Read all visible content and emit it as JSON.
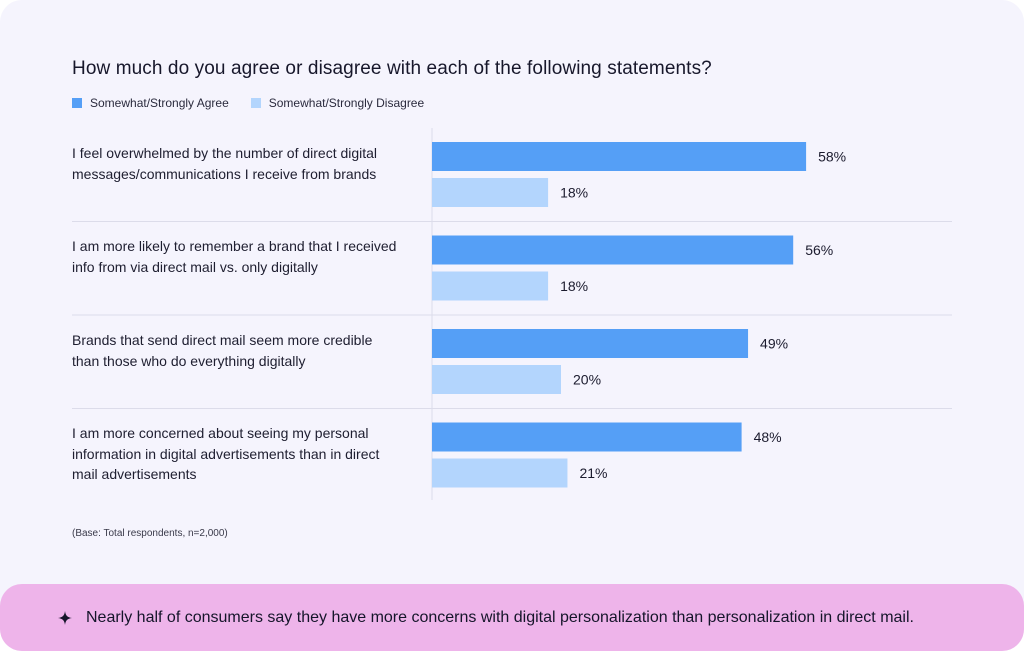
{
  "colors": {
    "agree": "#559ff6",
    "disagree": "#b3d5fd",
    "banner": "#eeb4ea"
  },
  "chart_data": {
    "type": "bar",
    "orientation": "horizontal",
    "title": "How much do you agree or disagree with each of the following statements?",
    "categories": [
      "I feel overwhelmed by the number of direct digital messages/communications I receive from brands",
      "I am more likely to remember a brand that I received info from via direct mail vs. only digitally",
      "Brands that send direct mail seem more credible than those who do everything digitally",
      "I am more concerned about seeing my personal information in digital advertisements than in direct mail advertisements"
    ],
    "series": [
      {
        "name": "Somewhat/Strongly Agree",
        "values": [
          58,
          56,
          49,
          48
        ],
        "labels": [
          "58%",
          "56%",
          "49%",
          "48%"
        ]
      },
      {
        "name": "Somewhat/Strongly Disagree",
        "values": [
          18,
          18,
          20,
          21
        ],
        "labels": [
          "18%",
          "18%",
          "20%",
          "21%"
        ]
      }
    ],
    "unit": "%",
    "xlim": [
      0,
      100
    ],
    "legend_position": "top-left",
    "grid": false
  },
  "footnote": "(Base: Total respondents, n=2,000)",
  "banner": {
    "icon": "sparkle-icon",
    "text": "Nearly half of consumers say they have more concerns with digital personalization than personalization in direct mail."
  }
}
